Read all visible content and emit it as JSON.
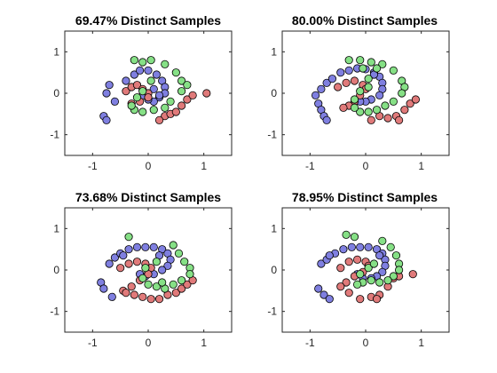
{
  "figure": {
    "colors": {
      "class1": "#7f7fe0",
      "class2": "#e07a7a",
      "class3": "#86e086"
    }
  },
  "chart_data": [
    {
      "type": "scatter",
      "title": "69.47% Distinct Samples",
      "xlim": [
        -1.5,
        1.5
      ],
      "ylim": [
        -1.5,
        1.5
      ],
      "xticks": [
        -1,
        0,
        1
      ],
      "yticks": [
        -1,
        0,
        1
      ],
      "xtick_labels": [
        "-1",
        "0",
        "1"
      ],
      "ytick_labels": [
        "-1",
        "0",
        "1"
      ],
      "grid": false,
      "series": [
        {
          "color": "#7f7fe0",
          "points": [
            [
              -0.8,
              -0.55
            ],
            [
              -0.75,
              -0.65
            ],
            [
              -0.7,
              0.2
            ],
            [
              -0.75,
              0.0
            ],
            [
              -0.6,
              -0.2
            ],
            [
              -0.4,
              0.3
            ],
            [
              -0.25,
              0.45
            ],
            [
              -0.15,
              0.55
            ],
            [
              0.0,
              0.55
            ],
            [
              0.15,
              0.45
            ],
            [
              0.25,
              0.3
            ],
            [
              0.3,
              0.15
            ],
            [
              0.3,
              0.0
            ],
            [
              0.2,
              -0.1
            ],
            [
              0.1,
              -0.2
            ],
            [
              0.0,
              -0.15
            ],
            [
              -0.1,
              -0.05
            ],
            [
              0.1,
              0.1
            ],
            [
              0.2,
              -0.05
            ]
          ]
        },
        {
          "color": "#e07a7a",
          "points": [
            [
              -0.4,
              0.05
            ],
            [
              -0.3,
              0.15
            ],
            [
              -0.2,
              0.2
            ],
            [
              -0.1,
              0.1
            ],
            [
              0.0,
              0.0
            ],
            [
              0.0,
              -0.1
            ],
            [
              -0.15,
              -0.2
            ],
            [
              -0.3,
              -0.25
            ],
            [
              0.3,
              -0.55
            ],
            [
              0.4,
              -0.5
            ],
            [
              0.5,
              -0.45
            ],
            [
              0.6,
              -0.3
            ],
            [
              0.7,
              -0.15
            ],
            [
              0.8,
              -0.05
            ],
            [
              1.05,
              0.0
            ],
            [
              0.2,
              -0.65
            ]
          ]
        },
        {
          "color": "#86e086",
          "points": [
            [
              -0.25,
              0.8
            ],
            [
              -0.1,
              0.75
            ],
            [
              0.05,
              0.8
            ],
            [
              0.3,
              0.7
            ],
            [
              0.5,
              0.5
            ],
            [
              0.6,
              0.3
            ],
            [
              0.7,
              0.2
            ],
            [
              0.6,
              0.05
            ],
            [
              0.4,
              -0.2
            ],
            [
              0.3,
              -0.35
            ],
            [
              0.1,
              -0.4
            ],
            [
              -0.1,
              -0.45
            ],
            [
              -0.25,
              -0.4
            ],
            [
              -0.3,
              -0.3
            ],
            [
              -0.2,
              -0.1
            ],
            [
              -0.1,
              0.05
            ],
            [
              0.05,
              0.3
            ]
          ]
        }
      ]
    },
    {
      "type": "scatter",
      "title": "80.00% Distinct Samples",
      "xlim": [
        -1.5,
        1.5
      ],
      "ylim": [
        -1.5,
        1.5
      ],
      "xticks": [
        -1,
        0,
        1
      ],
      "yticks": [
        -1,
        0,
        1
      ],
      "xtick_labels": [
        "-1",
        "0",
        "1"
      ],
      "ytick_labels": [
        "-1",
        "0",
        "1"
      ],
      "grid": false,
      "series": [
        {
          "color": "#7f7fe0",
          "points": [
            [
              -0.85,
              -0.25
            ],
            [
              -0.8,
              -0.4
            ],
            [
              -0.75,
              -0.55
            ],
            [
              -0.7,
              -0.65
            ],
            [
              -0.9,
              -0.05
            ],
            [
              -0.8,
              0.1
            ],
            [
              -0.7,
              0.25
            ],
            [
              -0.6,
              0.35
            ],
            [
              -0.45,
              0.5
            ],
            [
              -0.3,
              0.55
            ],
            [
              -0.15,
              0.6
            ],
            [
              0.0,
              0.58
            ],
            [
              0.15,
              0.5
            ],
            [
              0.25,
              0.4
            ],
            [
              0.3,
              0.25
            ],
            [
              0.3,
              0.1
            ],
            [
              0.25,
              -0.05
            ],
            [
              0.1,
              -0.15
            ],
            [
              0.0,
              -0.2
            ],
            [
              -0.1,
              -0.2
            ],
            [
              0.15,
              0.45
            ]
          ]
        },
        {
          "color": "#e07a7a",
          "points": [
            [
              -0.5,
              0.15
            ],
            [
              -0.35,
              0.25
            ],
            [
              -0.2,
              0.3
            ],
            [
              -0.05,
              0.2
            ],
            [
              0.0,
              0.1
            ],
            [
              -0.1,
              -0.05
            ],
            [
              -0.2,
              -0.2
            ],
            [
              -0.3,
              -0.3
            ],
            [
              -0.4,
              -0.35
            ],
            [
              0.25,
              -0.55
            ],
            [
              0.4,
              -0.6
            ],
            [
              0.55,
              -0.55
            ],
            [
              0.7,
              -0.4
            ],
            [
              0.8,
              -0.25
            ],
            [
              0.9,
              -0.15
            ],
            [
              0.1,
              -0.65
            ],
            [
              0.6,
              -0.65
            ]
          ]
        },
        {
          "color": "#86e086",
          "points": [
            [
              -0.3,
              0.8
            ],
            [
              -0.1,
              0.8
            ],
            [
              0.1,
              0.75
            ],
            [
              0.3,
              0.7
            ],
            [
              0.5,
              0.55
            ],
            [
              0.65,
              0.3
            ],
            [
              0.7,
              0.15
            ],
            [
              0.65,
              0.0
            ],
            [
              0.5,
              -0.2
            ],
            [
              0.35,
              -0.3
            ],
            [
              0.2,
              -0.4
            ],
            [
              0.05,
              -0.45
            ],
            [
              -0.1,
              -0.45
            ],
            [
              -0.2,
              -0.35
            ],
            [
              -0.2,
              -0.15
            ],
            [
              -0.1,
              0.05
            ],
            [
              0.05,
              0.15
            ],
            [
              0.05,
              0.35
            ],
            [
              0.2,
              0.6
            ],
            [
              -0.05,
              0.6
            ]
          ]
        }
      ]
    },
    {
      "type": "scatter",
      "title": "73.68% Distinct Samples",
      "xlim": [
        -1.5,
        1.5
      ],
      "ylim": [
        -1.5,
        1.5
      ],
      "xticks": [
        -1,
        0,
        1
      ],
      "yticks": [
        -1,
        0,
        1
      ],
      "xtick_labels": [
        "-1",
        "0",
        "1"
      ],
      "ytick_labels": [
        "-1",
        "0",
        "1"
      ],
      "grid": false,
      "series": [
        {
          "color": "#7f7fe0",
          "points": [
            [
              -0.85,
              -0.3
            ],
            [
              -0.8,
              -0.45
            ],
            [
              -0.65,
              -0.65
            ],
            [
              -0.7,
              0.15
            ],
            [
              -0.6,
              0.3
            ],
            [
              -0.5,
              0.4
            ],
            [
              -0.35,
              0.5
            ],
            [
              -0.2,
              0.55
            ],
            [
              -0.05,
              0.55
            ],
            [
              0.1,
              0.55
            ],
            [
              0.25,
              0.5
            ],
            [
              0.35,
              0.4
            ],
            [
              0.4,
              0.25
            ],
            [
              0.35,
              0.1
            ],
            [
              0.25,
              0.0
            ],
            [
              0.1,
              -0.1
            ],
            [
              -0.05,
              -0.15
            ],
            [
              -0.15,
              -0.1
            ],
            [
              0.2,
              0.35
            ],
            [
              -0.45,
              0.35
            ]
          ]
        },
        {
          "color": "#e07a7a",
          "points": [
            [
              -0.5,
              0.05
            ],
            [
              -0.35,
              0.15
            ],
            [
              -0.2,
              0.2
            ],
            [
              -0.05,
              0.15
            ],
            [
              0.05,
              0.05
            ],
            [
              0.0,
              -0.1
            ],
            [
              -0.15,
              -0.25
            ],
            [
              -0.3,
              -0.4
            ],
            [
              -0.45,
              -0.5
            ],
            [
              -0.25,
              -0.6
            ],
            [
              -0.1,
              -0.65
            ],
            [
              0.05,
              -0.7
            ],
            [
              0.2,
              -0.7
            ],
            [
              0.35,
              -0.6
            ],
            [
              0.5,
              -0.55
            ],
            [
              0.6,
              -0.45
            ],
            [
              0.7,
              -0.35
            ],
            [
              0.8,
              -0.25
            ],
            [
              -0.4,
              -0.55
            ]
          ]
        },
        {
          "color": "#86e086",
          "points": [
            [
              -0.35,
              0.8
            ],
            [
              0.45,
              0.6
            ],
            [
              0.55,
              0.4
            ],
            [
              0.65,
              0.2
            ],
            [
              0.75,
              0.05
            ],
            [
              0.75,
              -0.1
            ],
            [
              0.6,
              -0.25
            ],
            [
              0.45,
              -0.35
            ],
            [
              0.3,
              -0.45
            ],
            [
              0.15,
              -0.4
            ],
            [
              0.0,
              -0.35
            ],
            [
              -0.1,
              -0.2
            ],
            [
              -0.05,
              0.05
            ],
            [
              0.15,
              0.2
            ],
            [
              0.25,
              -0.3
            ]
          ]
        }
      ]
    },
    {
      "type": "scatter",
      "title": "78.95% Distinct Samples",
      "xlim": [
        -1.5,
        1.5
      ],
      "ylim": [
        -1.5,
        1.5
      ],
      "xticks": [
        -1,
        0,
        1
      ],
      "yticks": [
        -1,
        0,
        1
      ],
      "xtick_labels": [
        "-1",
        "0",
        "1"
      ],
      "ytick_labels": [
        "-1",
        "0",
        "1"
      ],
      "grid": false,
      "series": [
        {
          "color": "#7f7fe0",
          "points": [
            [
              -0.85,
              -0.45
            ],
            [
              -0.75,
              -0.6
            ],
            [
              -0.65,
              -0.7
            ],
            [
              -0.8,
              0.15
            ],
            [
              -0.7,
              0.25
            ],
            [
              -0.55,
              0.4
            ],
            [
              -0.4,
              0.5
            ],
            [
              -0.25,
              0.55
            ],
            [
              -0.1,
              0.55
            ],
            [
              0.05,
              0.55
            ],
            [
              0.2,
              0.5
            ],
            [
              0.3,
              0.4
            ],
            [
              0.35,
              0.25
            ],
            [
              0.35,
              0.1
            ],
            [
              0.3,
              -0.05
            ],
            [
              0.2,
              -0.15
            ],
            [
              0.1,
              -0.2
            ],
            [
              -0.05,
              -0.2
            ],
            [
              -0.15,
              -0.1
            ],
            [
              0.25,
              0.35
            ],
            [
              -0.65,
              0.35
            ]
          ]
        },
        {
          "color": "#e07a7a",
          "points": [
            [
              -0.45,
              0.05
            ],
            [
              -0.3,
              0.2
            ],
            [
              -0.15,
              0.25
            ],
            [
              0.0,
              0.2
            ],
            [
              0.05,
              0.1
            ],
            [
              -0.05,
              -0.05
            ],
            [
              -0.2,
              -0.15
            ],
            [
              -0.35,
              -0.3
            ],
            [
              -0.45,
              -0.4
            ],
            [
              -0.3,
              -0.55
            ],
            [
              -0.1,
              -0.7
            ],
            [
              0.1,
              -0.65
            ],
            [
              0.25,
              -0.6
            ],
            [
              0.4,
              -0.4
            ],
            [
              0.5,
              -0.2
            ],
            [
              0.6,
              -0.15
            ],
            [
              0.85,
              -0.1
            ],
            [
              0.2,
              -0.7
            ]
          ]
        },
        {
          "color": "#86e086",
          "points": [
            [
              -0.35,
              0.85
            ],
            [
              -0.2,
              0.8
            ],
            [
              0.3,
              0.7
            ],
            [
              0.45,
              0.55
            ],
            [
              0.55,
              0.35
            ],
            [
              0.6,
              0.15
            ],
            [
              0.6,
              0.0
            ],
            [
              0.5,
              -0.15
            ],
            [
              0.4,
              -0.25
            ],
            [
              0.25,
              -0.3
            ],
            [
              0.1,
              -0.25
            ],
            [
              -0.05,
              -0.3
            ],
            [
              -0.15,
              -0.35
            ],
            [
              -0.1,
              -0.1
            ],
            [
              0.05,
              0.05
            ],
            [
              0.15,
              0.15
            ]
          ]
        }
      ]
    }
  ]
}
